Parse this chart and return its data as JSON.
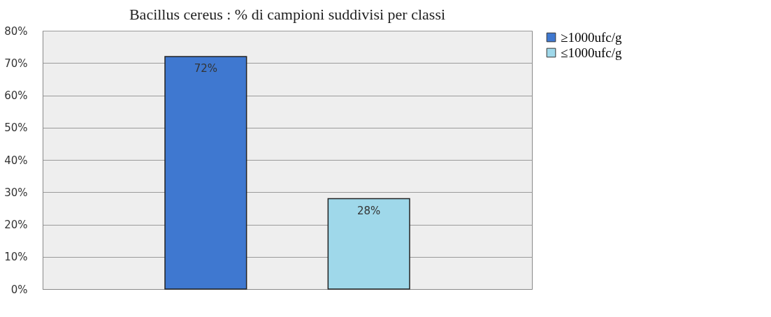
{
  "chart_data": {
    "type": "bar",
    "title": "Bacillus cereus : % di campioni suddivisi per classi",
    "categories": [
      null,
      null
    ],
    "series": [
      {
        "name": "≥1000ufc/g",
        "color": "#3f78d0",
        "values": [
          72,
          null
        ],
        "value_labels": [
          "72%",
          null
        ]
      },
      {
        "name": "≤1000ufc/g",
        "color": "#9fd8ea",
        "values": [
          null,
          28
        ],
        "value_labels": [
          null,
          "28%"
        ]
      }
    ],
    "ylim": [
      0,
      80
    ],
    "yticks": [
      {
        "value": 0,
        "label": "0%"
      },
      {
        "value": 10,
        "label": "10%"
      },
      {
        "value": 20,
        "label": "20%"
      },
      {
        "value": 30,
        "label": "30%"
      },
      {
        "value": 40,
        "label": "40%"
      },
      {
        "value": 50,
        "label": "50%"
      },
      {
        "value": 60,
        "label": "60%"
      },
      {
        "value": 70,
        "label": "70%"
      },
      {
        "value": 80,
        "label": "80%"
      }
    ],
    "grid": "y",
    "legend": "right"
  }
}
